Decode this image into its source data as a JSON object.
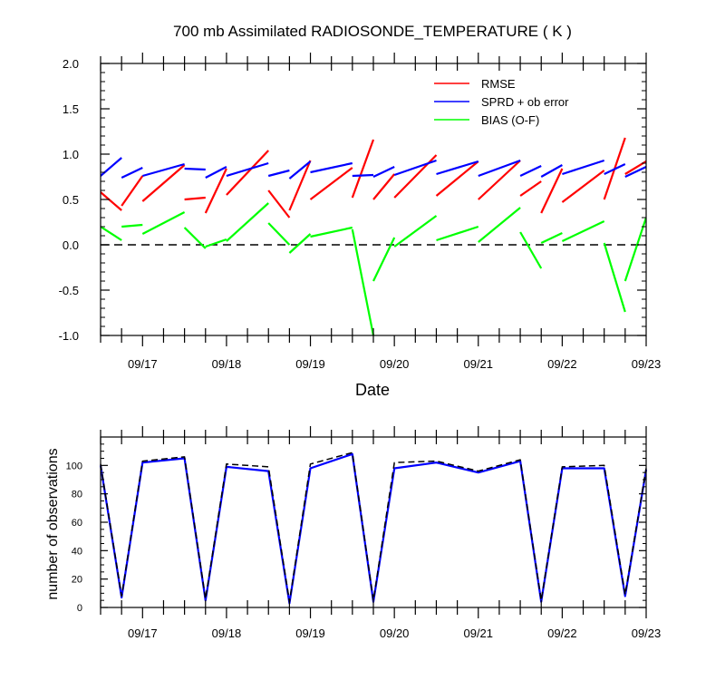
{
  "chart_data": [
    {
      "type": "line",
      "title": "700 mb Assimilated RADIOSONDE_TEMPERATURE ( K )",
      "xlabel": "Date",
      "ylabel": "",
      "x_ticks": [
        "09/17",
        "09/18",
        "09/19",
        "09/20",
        "09/21",
        "09/22",
        "09/23"
      ],
      "x_range": [
        16.5,
        23
      ],
      "ylim": [
        -1.0,
        2.0
      ],
      "y_ticks": [
        "-1.0",
        "-0.5",
        "0.0",
        "0.5",
        "1.0",
        "1.5",
        "2.0"
      ],
      "zero_line": true,
      "legend_placement": "top-right",
      "series": [
        {
          "name": "RMSE",
          "color": "#ff0000",
          "segments": [
            [
              [
                16.5,
                0.58
              ],
              [
                16.75,
                0.38
              ]
            ],
            [
              [
                16.75,
                0.43
              ],
              [
                17.0,
                0.76
              ]
            ],
            [
              [
                17.0,
                0.48
              ],
              [
                17.5,
                0.88
              ]
            ],
            [
              [
                17.5,
                0.5
              ],
              [
                17.75,
                0.52
              ]
            ],
            [
              [
                17.75,
                0.35
              ],
              [
                18.0,
                0.84
              ]
            ],
            [
              [
                18.0,
                0.55
              ],
              [
                18.5,
                1.04
              ]
            ],
            [
              [
                18.5,
                0.6
              ],
              [
                18.75,
                0.3
              ]
            ],
            [
              [
                18.75,
                0.38
              ],
              [
                19.0,
                0.93
              ]
            ],
            [
              [
                19.0,
                0.5
              ],
              [
                19.5,
                0.85
              ]
            ],
            [
              [
                19.5,
                0.52
              ],
              [
                19.75,
                1.16
              ]
            ],
            [
              [
                19.75,
                0.5
              ],
              [
                20.0,
                0.78
              ]
            ],
            [
              [
                20.0,
                0.52
              ],
              [
                20.5,
                0.99
              ]
            ],
            [
              [
                20.5,
                0.54
              ],
              [
                21.0,
                0.92
              ]
            ],
            [
              [
                21.0,
                0.5
              ],
              [
                21.5,
                0.93
              ]
            ],
            [
              [
                21.5,
                0.54
              ],
              [
                21.75,
                0.7
              ]
            ],
            [
              [
                21.75,
                0.35
              ],
              [
                22.0,
                0.84
              ]
            ],
            [
              [
                22.0,
                0.47
              ],
              [
                22.5,
                0.82
              ]
            ],
            [
              [
                22.5,
                0.5
              ],
              [
                22.75,
                1.18
              ]
            ],
            [
              [
                22.75,
                0.78
              ],
              [
                23.0,
                0.92
              ]
            ]
          ]
        },
        {
          "name": "SPRD + ob error",
          "color": "#0000ff",
          "segments": [
            [
              [
                16.5,
                0.76
              ],
              [
                16.75,
                0.96
              ]
            ],
            [
              [
                16.75,
                0.74
              ],
              [
                17.0,
                0.85
              ]
            ],
            [
              [
                17.0,
                0.76
              ],
              [
                17.5,
                0.89
              ]
            ],
            [
              [
                17.5,
                0.84
              ],
              [
                17.75,
                0.83
              ]
            ],
            [
              [
                17.75,
                0.74
              ],
              [
                18.0,
                0.86
              ]
            ],
            [
              [
                18.0,
                0.76
              ],
              [
                18.5,
                0.9
              ]
            ],
            [
              [
                18.5,
                0.76
              ],
              [
                18.75,
                0.82
              ]
            ],
            [
              [
                18.75,
                0.73
              ],
              [
                19.0,
                0.92
              ]
            ],
            [
              [
                19.0,
                0.8
              ],
              [
                19.5,
                0.9
              ]
            ],
            [
              [
                19.5,
                0.76
              ],
              [
                19.75,
                0.77
              ]
            ],
            [
              [
                19.75,
                0.75
              ],
              [
                20.0,
                0.86
              ]
            ],
            [
              [
                20.0,
                0.77
              ],
              [
                20.5,
                0.93
              ]
            ],
            [
              [
                20.5,
                0.78
              ],
              [
                21.0,
                0.92
              ]
            ],
            [
              [
                21.0,
                0.76
              ],
              [
                21.5,
                0.93
              ]
            ],
            [
              [
                21.5,
                0.76
              ],
              [
                21.75,
                0.87
              ]
            ],
            [
              [
                21.75,
                0.75
              ],
              [
                22.0,
                0.88
              ]
            ],
            [
              [
                22.0,
                0.78
              ],
              [
                22.5,
                0.93
              ]
            ],
            [
              [
                22.5,
                0.78
              ],
              [
                22.75,
                0.89
              ]
            ],
            [
              [
                22.75,
                0.75
              ],
              [
                23.0,
                0.86
              ]
            ]
          ]
        },
        {
          "name": "BIAS (O-F)",
          "color": "#00ff00",
          "segments": [
            [
              [
                16.5,
                0.2
              ],
              [
                16.75,
                0.05
              ]
            ],
            [
              [
                16.75,
                0.2
              ],
              [
                17.0,
                0.22
              ]
            ],
            [
              [
                17.0,
                0.12
              ],
              [
                17.5,
                0.36
              ]
            ],
            [
              [
                17.5,
                0.19
              ],
              [
                17.75,
                -0.04
              ]
            ],
            [
              [
                17.75,
                -0.02
              ],
              [
                18.0,
                0.06
              ]
            ],
            [
              [
                18.0,
                0.04
              ],
              [
                18.5,
                0.46
              ]
            ],
            [
              [
                18.5,
                0.24
              ],
              [
                18.75,
                0.0
              ]
            ],
            [
              [
                18.75,
                -0.09
              ],
              [
                19.0,
                0.12
              ]
            ],
            [
              [
                19.0,
                0.09
              ],
              [
                19.5,
                0.19
              ]
            ],
            [
              [
                19.5,
                0.17
              ],
              [
                19.75,
                -1.0
              ]
            ],
            [
              [
                19.75,
                -0.4
              ],
              [
                20.0,
                0.08
              ]
            ],
            [
              [
                20.0,
                -0.02
              ],
              [
                20.5,
                0.32
              ]
            ],
            [
              [
                20.5,
                0.05
              ],
              [
                21.0,
                0.2
              ]
            ],
            [
              [
                21.0,
                0.03
              ],
              [
                21.5,
                0.41
              ]
            ],
            [
              [
                21.5,
                0.14
              ],
              [
                21.75,
                -0.26
              ]
            ],
            [
              [
                21.75,
                0.02
              ],
              [
                22.0,
                0.13
              ]
            ],
            [
              [
                22.0,
                0.04
              ],
              [
                22.5,
                0.26
              ]
            ],
            [
              [
                22.5,
                0.02
              ],
              [
                22.75,
                -0.74
              ]
            ],
            [
              [
                22.75,
                -0.4
              ],
              [
                23.0,
                0.3
              ]
            ]
          ]
        }
      ]
    },
    {
      "type": "line",
      "title": "",
      "xlabel": "",
      "ylabel": "number of observations",
      "x_ticks": [
        "09/17",
        "09/18",
        "09/19",
        "09/20",
        "09/21",
        "09/22",
        "09/23"
      ],
      "x_range": [
        16.5,
        23
      ],
      "ylim": [
        0,
        120
      ],
      "y_ticks": [
        "0",
        "20",
        "40",
        "60",
        "80",
        "100"
      ],
      "series": [
        {
          "name": "",
          "color": "#0000ff",
          "style": "solid",
          "x": [
            16.5,
            16.75,
            17.0,
            17.5,
            17.75,
            18.0,
            18.5,
            18.75,
            19.0,
            19.5,
            19.75,
            20.0,
            20.5,
            21.0,
            21.5,
            21.75,
            22.0,
            22.5,
            22.75,
            23.0
          ],
          "y": [
            100,
            7,
            102,
            105,
            5,
            99,
            96,
            3,
            98,
            108,
            4,
            98,
            102,
            95,
            103,
            4,
            98,
            98,
            8,
            97
          ]
        },
        {
          "name": "",
          "color": "#000000",
          "style": "dashed",
          "x": [
            16.5,
            16.75,
            17.0,
            17.5,
            17.75,
            18.0,
            18.5,
            18.75,
            19.0,
            19.5,
            19.75,
            20.0,
            20.5,
            21.0,
            21.5,
            21.75,
            22.0,
            22.5,
            22.75,
            23.0
          ],
          "y": [
            101,
            8,
            103,
            106,
            6,
            101,
            99,
            4,
            101,
            109,
            5,
            102,
            103,
            96,
            104,
            5,
            99,
            100,
            9,
            98
          ]
        }
      ]
    }
  ]
}
